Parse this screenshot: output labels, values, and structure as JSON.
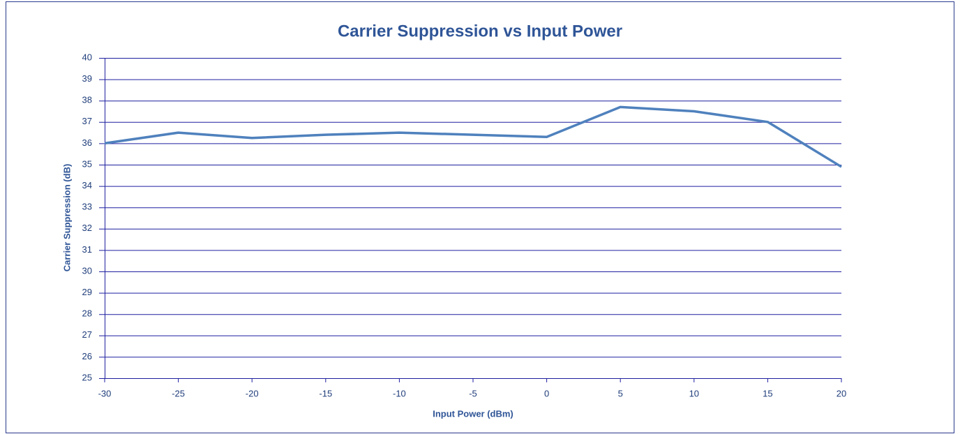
{
  "chart_data": {
    "type": "line",
    "title": "Carrier Suppression vs Input Power",
    "x_label": "Input Power (dBm)",
    "y_label": "Carrier Suppression (dB)",
    "x": [
      -30,
      -25,
      -20,
      -15,
      -10,
      -5,
      0,
      5,
      10,
      15,
      20
    ],
    "series": [
      {
        "name": "Carrier Suppression",
        "color": "#4f81bd",
        "values": [
          36.0,
          36.5,
          36.25,
          36.4,
          36.5,
          36.4,
          36.3,
          37.7,
          37.5,
          37.0,
          34.9
        ]
      }
    ],
    "xlim": [
      -30,
      20
    ],
    "xticks": [
      -30,
      -25,
      -20,
      -15,
      -10,
      -5,
      0,
      5,
      10,
      15,
      20
    ],
    "ylim": [
      25,
      40
    ],
    "yticks": [
      25,
      26,
      27,
      28,
      29,
      30,
      31,
      32,
      33,
      34,
      35,
      36,
      37,
      38,
      39,
      40
    ],
    "grid": true
  }
}
